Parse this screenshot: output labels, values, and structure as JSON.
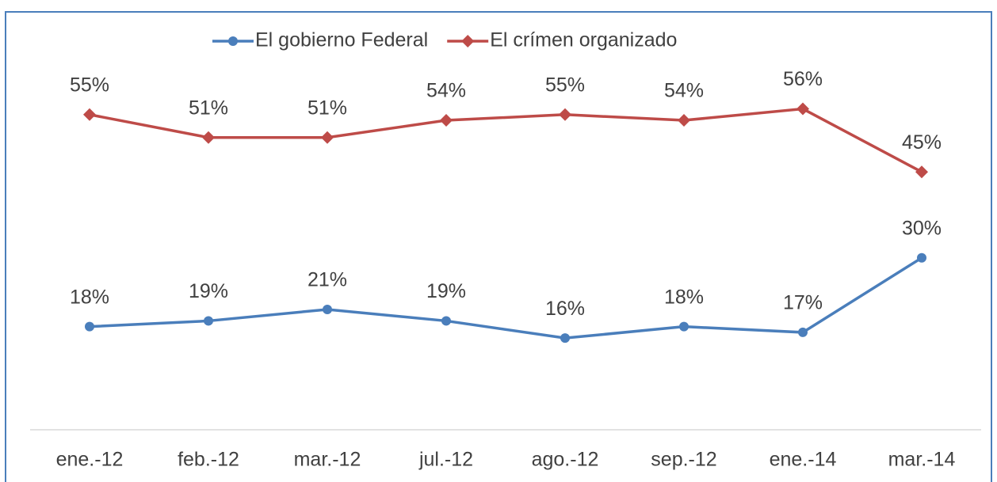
{
  "chart_data": {
    "type": "line",
    "categories": [
      "ene.-12",
      "feb.-12",
      "mar.-12",
      "jul.-12",
      "ago.-12",
      "sep.-12",
      "ene.-14",
      "mar.-14"
    ],
    "series": [
      {
        "name": "El gobierno Federal",
        "color": "#4a7ebb",
        "marker": "circle",
        "values": [
          18,
          19,
          21,
          19,
          16,
          18,
          17,
          30
        ],
        "value_labels": [
          "18%",
          "19%",
          "21%",
          "19%",
          "16%",
          "18%",
          "17%",
          "30%"
        ]
      },
      {
        "name": "El crímen organizado",
        "color": "#be4b48",
        "marker": "diamond",
        "values": [
          55,
          51,
          51,
          54,
          55,
          54,
          56,
          45
        ],
        "value_labels": [
          "55%",
          "51%",
          "51%",
          "54%",
          "55%",
          "54%",
          "56%",
          "45%"
        ]
      }
    ],
    "ylim": [
      0,
      75
    ],
    "grid": false,
    "legend": "top"
  }
}
